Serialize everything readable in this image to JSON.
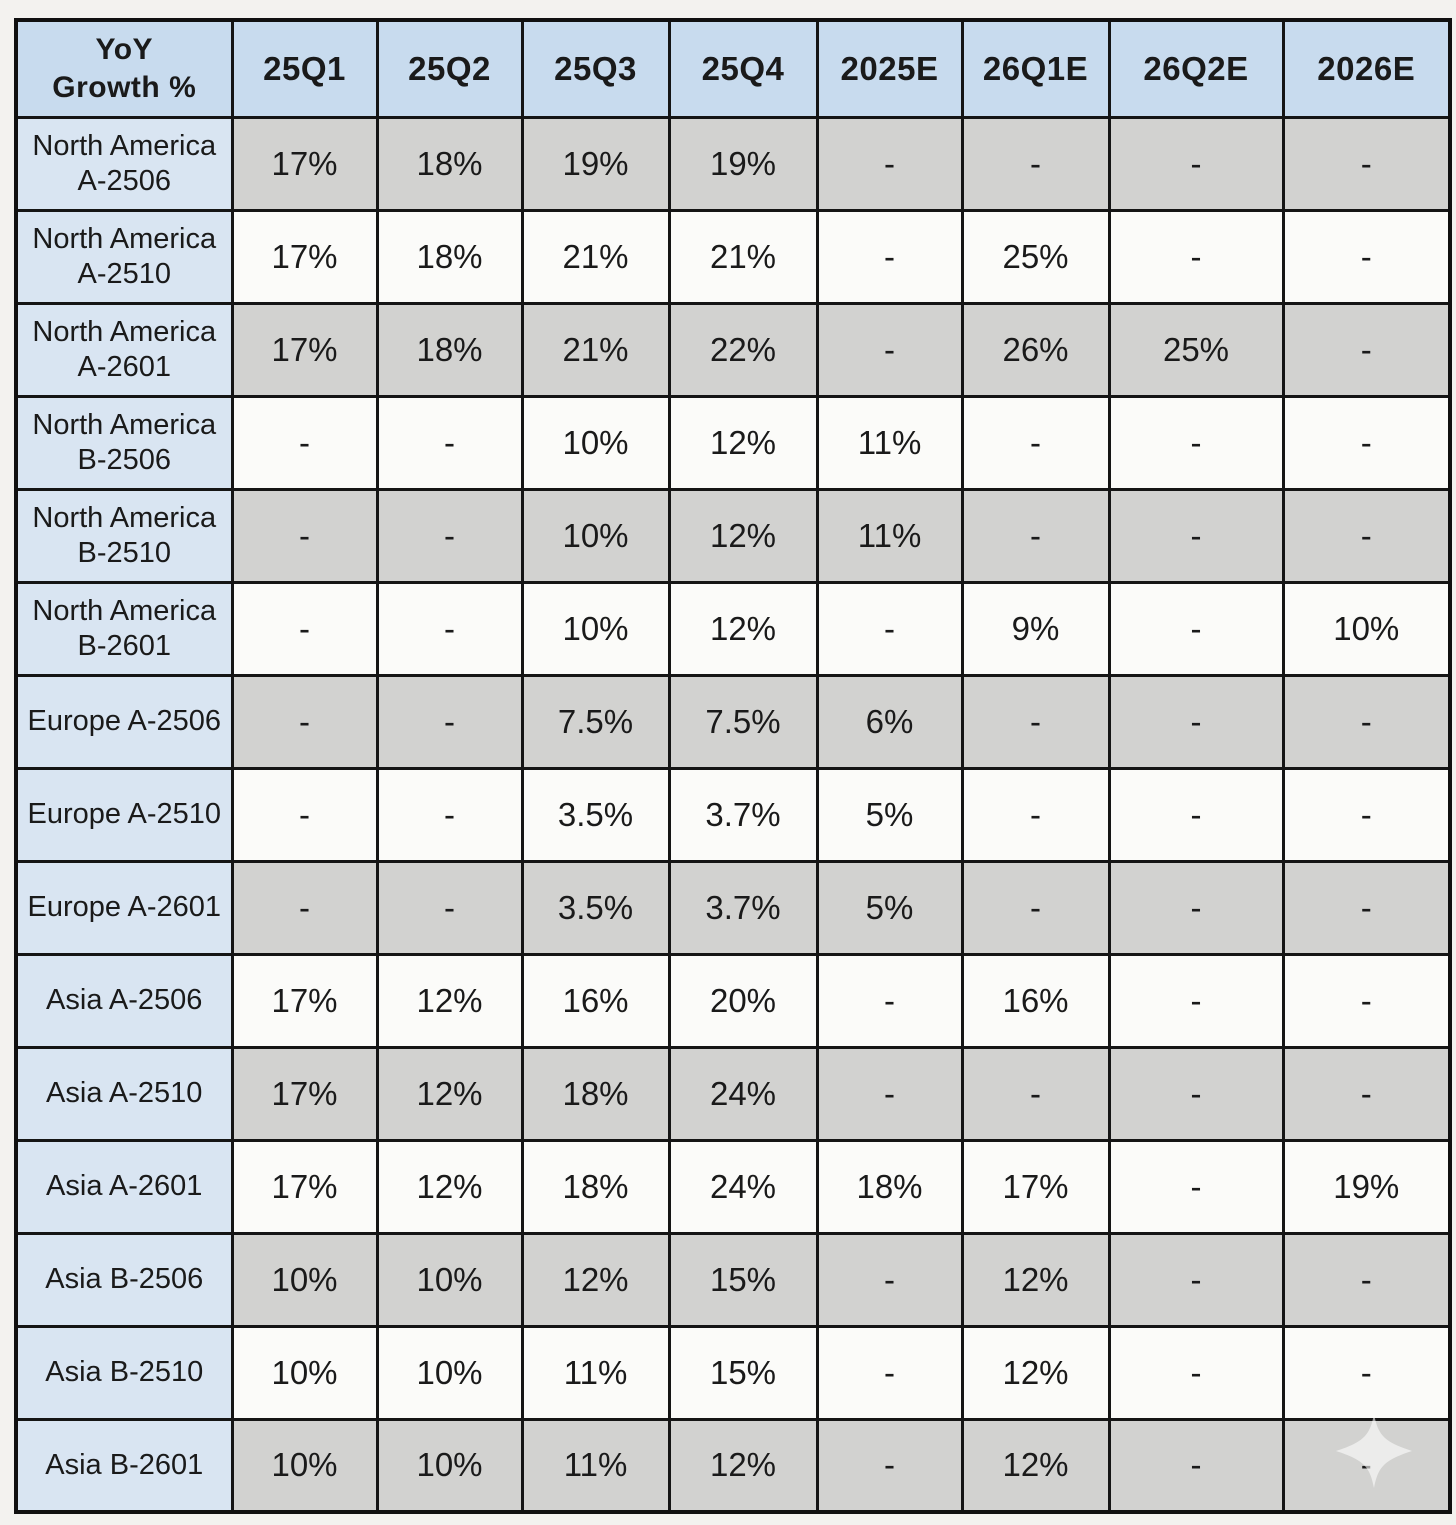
{
  "table": {
    "title": "YoY\nGrowth %",
    "columns": [
      "25Q1",
      "25Q2",
      "25Q3",
      "25Q4",
      "2025E",
      "26Q1E",
      "26Q2E",
      "2026E"
    ],
    "rows": [
      {
        "label": "North America A-2506",
        "values": [
          "17%",
          "18%",
          "19%",
          "19%",
          "-",
          "-",
          "-",
          "-"
        ]
      },
      {
        "label": "North America A-2510",
        "values": [
          "17%",
          "18%",
          "21%",
          "21%",
          "-",
          "25%",
          "-",
          "-"
        ]
      },
      {
        "label": "North America A-2601",
        "values": [
          "17%",
          "18%",
          "21%",
          "22%",
          "-",
          "26%",
          "25%",
          "-"
        ]
      },
      {
        "label": "North America B-2506",
        "values": [
          "-",
          "-",
          "10%",
          "12%",
          "11%",
          "-",
          "-",
          "-"
        ]
      },
      {
        "label": "North America B-2510",
        "values": [
          "-",
          "-",
          "10%",
          "12%",
          "11%",
          "-",
          "-",
          "-"
        ]
      },
      {
        "label": "North America B-2601",
        "values": [
          "-",
          "-",
          "10%",
          "12%",
          "-",
          "9%",
          "-",
          "10%"
        ]
      },
      {
        "label": "Europe A-2506",
        "values": [
          "-",
          "-",
          "7.5%",
          "7.5%",
          "6%",
          "-",
          "-",
          "-"
        ]
      },
      {
        "label": "Europe A-2510",
        "values": [
          "-",
          "-",
          "3.5%",
          "3.7%",
          "5%",
          "-",
          "-",
          "-"
        ]
      },
      {
        "label": "Europe A-2601",
        "values": [
          "-",
          "-",
          "3.5%",
          "3.7%",
          "5%",
          "-",
          "-",
          "-"
        ]
      },
      {
        "label": "Asia A-2506",
        "values": [
          "17%",
          "12%",
          "16%",
          "20%",
          "-",
          "16%",
          "-",
          "-"
        ]
      },
      {
        "label": "Asia A-2510",
        "values": [
          "17%",
          "12%",
          "18%",
          "24%",
          "-",
          "-",
          "-",
          "-"
        ]
      },
      {
        "label": "Asia A-2601",
        "values": [
          "17%",
          "12%",
          "18%",
          "24%",
          "18%",
          "17%",
          "-",
          "19%"
        ]
      },
      {
        "label": "Asia B-2506",
        "values": [
          "10%",
          "10%",
          "12%",
          "15%",
          "-",
          "12%",
          "-",
          "-"
        ]
      },
      {
        "label": "Asia B-2510",
        "values": [
          "10%",
          "10%",
          "11%",
          "15%",
          "-",
          "12%",
          "-",
          "-"
        ]
      },
      {
        "label": "Asia B-2601",
        "values": [
          "10%",
          "10%",
          "11%",
          "12%",
          "-",
          "12%",
          "-",
          "-"
        ]
      }
    ]
  },
  "watermark_icon": "sparkle-icon",
  "colors": {
    "header_blue": "#c8dbee",
    "label_blue": "#d9e5f2",
    "row_gray": "#d2d2d0",
    "row_white": "#fbfbf9",
    "border_black": "#151515"
  },
  "chart_data": {
    "type": "table",
    "title": "YoY Growth %",
    "categories": [
      "25Q1",
      "25Q2",
      "25Q3",
      "25Q4",
      "2025E",
      "26Q1E",
      "26Q2E",
      "2026E"
    ],
    "series": [
      {
        "name": "North America A-2506",
        "values": [
          "17%",
          "18%",
          "19%",
          "19%",
          null,
          null,
          null,
          null
        ]
      },
      {
        "name": "North America A-2510",
        "values": [
          "17%",
          "18%",
          "21%",
          "21%",
          null,
          "25%",
          null,
          null
        ]
      },
      {
        "name": "North America A-2601",
        "values": [
          "17%",
          "18%",
          "21%",
          "22%",
          null,
          "26%",
          "25%",
          null
        ]
      },
      {
        "name": "North America B-2506",
        "values": [
          null,
          null,
          "10%",
          "12%",
          "11%",
          null,
          null,
          null
        ]
      },
      {
        "name": "North America B-2510",
        "values": [
          null,
          null,
          "10%",
          "12%",
          "11%",
          null,
          null,
          null
        ]
      },
      {
        "name": "North America B-2601",
        "values": [
          null,
          null,
          "10%",
          "12%",
          null,
          "9%",
          null,
          "10%"
        ]
      },
      {
        "name": "Europe A-2506",
        "values": [
          null,
          null,
          "7.5%",
          "7.5%",
          "6%",
          null,
          null,
          null
        ]
      },
      {
        "name": "Europe A-2510",
        "values": [
          null,
          null,
          "3.5%",
          "3.7%",
          "5%",
          null,
          null,
          null
        ]
      },
      {
        "name": "Europe A-2601",
        "values": [
          null,
          null,
          "3.5%",
          "3.7%",
          "5%",
          null,
          null,
          null
        ]
      },
      {
        "name": "Asia A-2506",
        "values": [
          "17%",
          "12%",
          "16%",
          "20%",
          null,
          "16%",
          null,
          null
        ]
      },
      {
        "name": "Asia A-2510",
        "values": [
          "17%",
          "12%",
          "18%",
          "24%",
          null,
          null,
          null,
          null
        ]
      },
      {
        "name": "Asia A-2601",
        "values": [
          "17%",
          "12%",
          "18%",
          "24%",
          "18%",
          "17%",
          null,
          "19%"
        ]
      },
      {
        "name": "Asia B-2506",
        "values": [
          "10%",
          "10%",
          "12%",
          "15%",
          null,
          "12%",
          null,
          null
        ]
      },
      {
        "name": "Asia B-2510",
        "values": [
          "10%",
          "10%",
          "11%",
          "15%",
          null,
          "12%",
          null,
          null
        ]
      },
      {
        "name": "Asia B-2601",
        "values": [
          "10%",
          "10%",
          "11%",
          "12%",
          null,
          "12%",
          null,
          null
        ]
      }
    ]
  }
}
